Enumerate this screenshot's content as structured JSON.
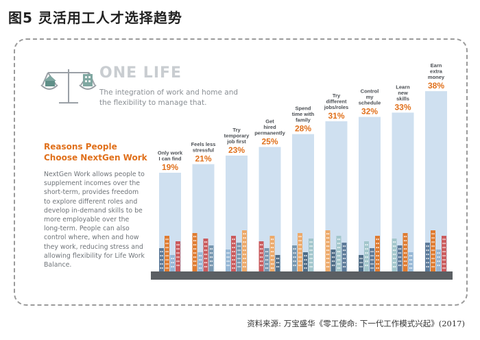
{
  "figure_title": "图5  灵活用工人才选择趋势",
  "one_life": {
    "heading": "ONE LIFE",
    "subtitle": "The integration of work and home and the flexibility to manage that."
  },
  "reasons": {
    "title": "Reasons People Choose NextGen Work",
    "body": "NextGen Work allows people to supplement incomes over the short-term, provides freedom to explore different roles and develop in-demand skills to be more employable over the long-term. People can also control where, when and how they work, reducing stress and allowing flexibility for Life Work Balance."
  },
  "source": "资料来源: 万宝盛华《零工使命: 下一代工作模式兴起》(2017)",
  "colors": {
    "accent": "#e0701b",
    "bar": "#cfe0f0",
    "ground": "#5b5f63"
  },
  "icons": [
    "balance-scale-icon",
    "house-icon",
    "office-building-icon"
  ],
  "chart_data": {
    "type": "bar",
    "categories": [
      "Only work I can find",
      "Feels less stressful",
      "Try temporary job first",
      "Get hired permanently",
      "Spend time with family",
      "Try different jobs/roles",
      "Control my schedule",
      "Learn new skills",
      "Earn extra money"
    ],
    "category_lines": [
      [
        "Only work",
        "I can find"
      ],
      [
        "Feels less",
        "stressful"
      ],
      [
        "Try",
        "temporary",
        "job first"
      ],
      [
        "Get",
        "hired",
        "permanently"
      ],
      [
        "Spend",
        "time with",
        "family"
      ],
      [
        "Try",
        "different",
        "jobs/roles"
      ],
      [
        "Control",
        "my",
        "schedule"
      ],
      [
        "Learn",
        "new",
        "skills"
      ],
      [
        "Earn",
        "extra",
        "money"
      ]
    ],
    "values": [
      19,
      21,
      23,
      25,
      28,
      31,
      32,
      33,
      38
    ],
    "labels": [
      "19%",
      "21%",
      "23%",
      "25%",
      "28%",
      "31%",
      "32%",
      "33%",
      "38%"
    ]
  }
}
